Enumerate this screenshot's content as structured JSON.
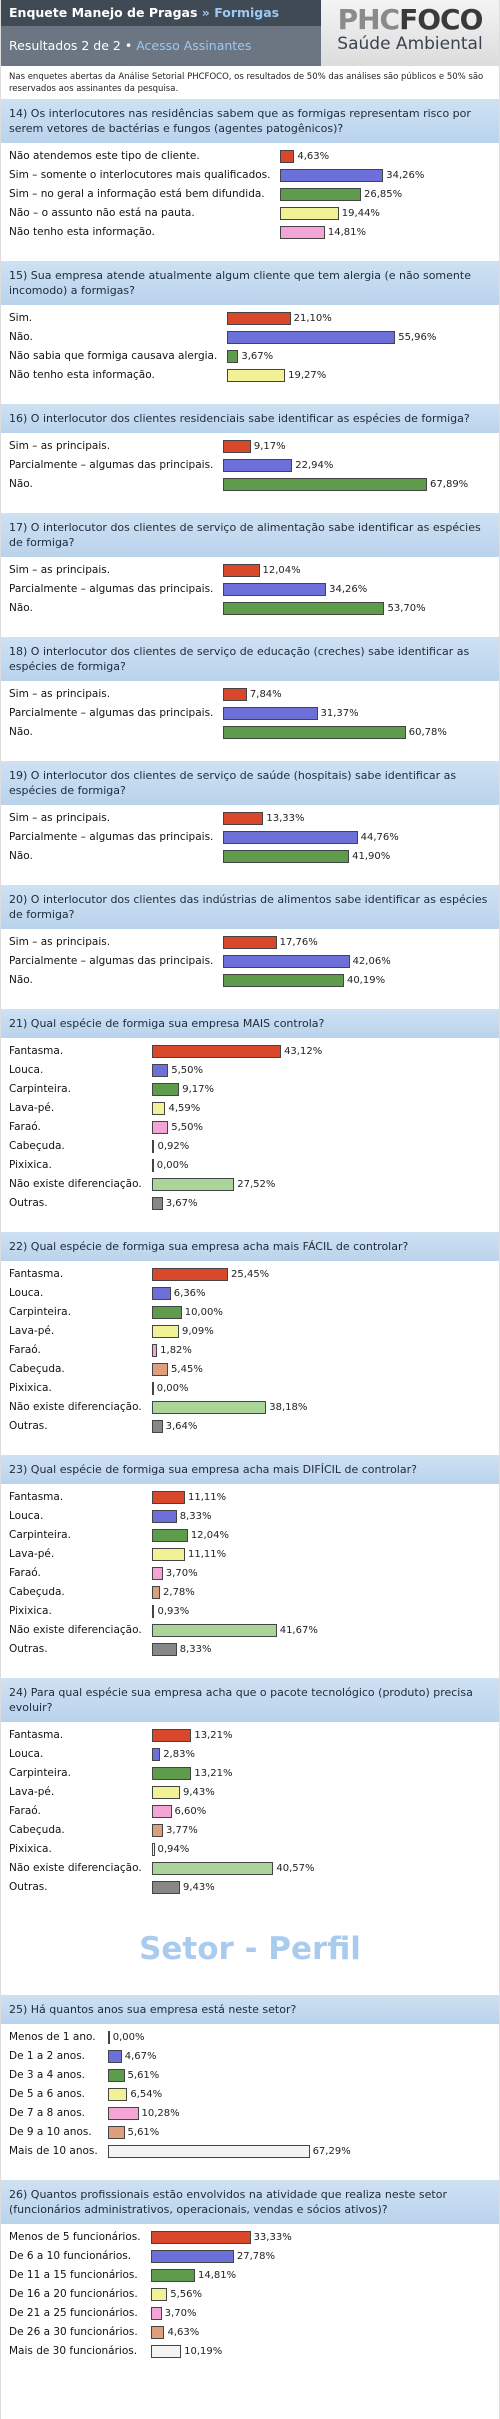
{
  "header": {
    "title": "Enquete Manejo de Pragas",
    "separator": "»",
    "topic": "Formigas",
    "results": "Resultados 2 de 2",
    "bullet": "•",
    "access": "Acesso Assinantes",
    "logo_a": "PHC",
    "logo_b": "FOCO",
    "logo_sub": "Saúde Ambiental"
  },
  "intro": "Nas enquetes abertas da Análise Setorial PHCFOCO, os resultados de 50% das análises são públicos e 50% são reservados aos assinantes da pesquisa.",
  "section_heading": "Setor - Perfil",
  "palette": [
    "#d9482a",
    "#6c70d8",
    "#5e9c4c",
    "#f1f195",
    "#f3a5d6",
    "#dea07c",
    "#f4f4f4",
    "#abd49b",
    "#878787"
  ],
  "chart_data": [
    {
      "type": "bar",
      "title": "14) Os interlocutores nas residências sabem que as formigas representam risco por serem vetores de bactérias e fungos (agentes patogênicos)?",
      "categories": [
        "Não atendemos este tipo de cliente.",
        "Sim – somente o interlocutores mais qualificados.",
        "Sim – no geral a informação está bem difundida.",
        "Não – o assunto não está na pauta.",
        "Não tenho esta informação."
      ],
      "values": [
        4.63,
        34.26,
        26.85,
        19.44,
        14.81
      ],
      "value_labels": [
        "4,63%",
        "34,26%",
        "26,85%",
        "19,44%",
        "14,81%"
      ]
    },
    {
      "type": "bar",
      "title": "15) Sua empresa atende atualmente algum cliente que tem alergia (e não somente incomodo) a formigas?",
      "categories": [
        "Sim.",
        "Não.",
        "Não sabia que formiga causava alergia.",
        "Não tenho esta informação."
      ],
      "values": [
        21.1,
        55.96,
        3.67,
        19.27
      ],
      "value_labels": [
        "21,10%",
        "55,96%",
        "3,67%",
        "19,27%"
      ]
    },
    {
      "type": "bar",
      "title": "16) O interlocutor dos clientes residenciais sabe identificar as espécies de formiga?",
      "categories": [
        "Sim – as principais.",
        "Parcialmente – algumas das principais.",
        "Não."
      ],
      "values": [
        9.17,
        22.94,
        67.89
      ],
      "value_labels": [
        "9,17%",
        "22,94%",
        "67,89%"
      ]
    },
    {
      "type": "bar",
      "title": "17) O interlocutor dos clientes de serviço de alimentação sabe identificar as espécies de formiga?",
      "categories": [
        "Sim – as principais.",
        "Parcialmente – algumas das principais.",
        "Não."
      ],
      "values": [
        12.04,
        34.26,
        53.7
      ],
      "value_labels": [
        "12,04%",
        "34,26%",
        "53,70%"
      ]
    },
    {
      "type": "bar",
      "title": "18) O interlocutor dos clientes de serviço de educação (creches) sabe identificar as espécies de formiga?",
      "categories": [
        "Sim – as principais.",
        "Parcialmente – algumas das principais.",
        "Não."
      ],
      "values": [
        7.84,
        31.37,
        60.78
      ],
      "value_labels": [
        "7,84%",
        "31,37%",
        "60,78%"
      ]
    },
    {
      "type": "bar",
      "title": "19) O interlocutor dos clientes de serviço de saúde (hospitais) sabe identificar as espécies de formiga?",
      "categories": [
        "Sim – as principais.",
        "Parcialmente – algumas das principais.",
        "Não."
      ],
      "values": [
        13.33,
        44.76,
        41.9
      ],
      "value_labels": [
        "13,33%",
        "44,76%",
        "41,90%"
      ]
    },
    {
      "type": "bar",
      "title": "20) O interlocutor dos clientes das indústrias de alimentos sabe identificar as espécies de formiga?",
      "categories": [
        "Sim – as principais.",
        "Parcialmente – algumas das principais.",
        "Não."
      ],
      "values": [
        17.76,
        42.06,
        40.19
      ],
      "value_labels": [
        "17,76%",
        "42,06%",
        "40,19%"
      ]
    },
    {
      "type": "bar",
      "title": "21) Qual espécie de formiga sua empresa MAIS controla?",
      "categories": [
        "Fantasma.",
        "Louca.",
        "Carpinteira.",
        "Lava-pé.",
        "Faraó.",
        "Cabeçuda.",
        "Pixixica.",
        "Não existe diferenciação.",
        "Outras."
      ],
      "values": [
        43.12,
        5.5,
        9.17,
        4.59,
        5.5,
        0.92,
        0.0,
        27.52,
        3.67
      ],
      "value_labels": [
        "43,12%",
        "5,50%",
        "9,17%",
        "4,59%",
        "5,50%",
        "0,92%",
        "0,00%",
        "27,52%",
        "3,67%"
      ]
    },
    {
      "type": "bar",
      "title": "22) Qual espécie de formiga sua empresa acha mais FÁCIL de controlar?",
      "categories": [
        "Fantasma.",
        "Louca.",
        "Carpinteira.",
        "Lava-pé.",
        "Faraó.",
        "Cabeçuda.",
        "Pixixica.",
        "Não existe diferenciação.",
        "Outras."
      ],
      "values": [
        25.45,
        6.36,
        10.0,
        9.09,
        1.82,
        5.45,
        0.0,
        38.18,
        3.64
      ],
      "value_labels": [
        "25,45%",
        "6,36%",
        "10,00%",
        "9,09%",
        "1,82%",
        "5,45%",
        "0,00%",
        "38,18%",
        "3,64%"
      ]
    },
    {
      "type": "bar",
      "title": "23) Qual espécie de formiga sua empresa acha mais DIFÍCIL de controlar?",
      "categories": [
        "Fantasma.",
        "Louca.",
        "Carpinteira.",
        "Lava-pé.",
        "Faraó.",
        "Cabeçuda.",
        "Pixixica.",
        "Não existe diferenciação.",
        "Outras."
      ],
      "values": [
        11.11,
        8.33,
        12.04,
        11.11,
        3.7,
        2.78,
        0.93,
        41.67,
        8.33
      ],
      "value_labels": [
        "11,11%",
        "8,33%",
        "12,04%",
        "11,11%",
        "3,70%",
        "2,78%",
        "0,93%",
        "41,67%",
        "8,33%"
      ]
    },
    {
      "type": "bar",
      "title": "24) Para qual espécie sua empresa acha que o pacote tecnológico (produto) precisa evoluir?",
      "categories": [
        "Fantasma.",
        "Louca.",
        "Carpinteira.",
        "Lava-pé.",
        "Faraó.",
        "Cabeçuda.",
        "Pixixica.",
        "Não existe diferenciação.",
        "Outras."
      ],
      "values": [
        13.21,
        2.83,
        13.21,
        9.43,
        6.6,
        3.77,
        0.94,
        40.57,
        9.43
      ],
      "value_labels": [
        "13,21%",
        "2,83%",
        "13,21%",
        "9,43%",
        "6,60%",
        "3,77%",
        "0,94%",
        "40,57%",
        "9,43%"
      ]
    },
    {
      "type": "bar",
      "title": "25) Há quantos anos sua empresa está neste setor?",
      "categories": [
        "Menos de 1 ano.",
        "De 1 a 2 anos.",
        "De 3 a 4 anos.",
        "De 5 a 6 anos.",
        "De 7 a 8 anos.",
        "De 9 a 10 anos.",
        "Mais de 10 anos."
      ],
      "values": [
        0.0,
        4.67,
        5.61,
        6.54,
        10.28,
        5.61,
        67.29
      ],
      "value_labels": [
        "0,00%",
        "4,67%",
        "5,61%",
        "6,54%",
        "10,28%",
        "5,61%",
        "67,29%"
      ]
    },
    {
      "type": "bar",
      "title": "26) Quantos profissionais estão envolvidos na atividade que realiza neste setor (funcionários administrativos, operacionais, vendas e sócios ativos)?",
      "categories": [
        "Menos de 5 funcionários.",
        "De 6 a 10 funcionários.",
        "De 11 a 15 funcionários.",
        "De 16 a 20 funcionários.",
        "De 21 a 25 funcionários.",
        "De 26 a 30 funcionários.",
        "Mais de 30 funcionários."
      ],
      "values": [
        33.33,
        27.78,
        14.81,
        5.56,
        3.7,
        4.63,
        10.19
      ],
      "value_labels": [
        "33,33%",
        "27,78%",
        "14,81%",
        "5,56%",
        "3,70%",
        "4,63%",
        "10,19%"
      ]
    }
  ]
}
